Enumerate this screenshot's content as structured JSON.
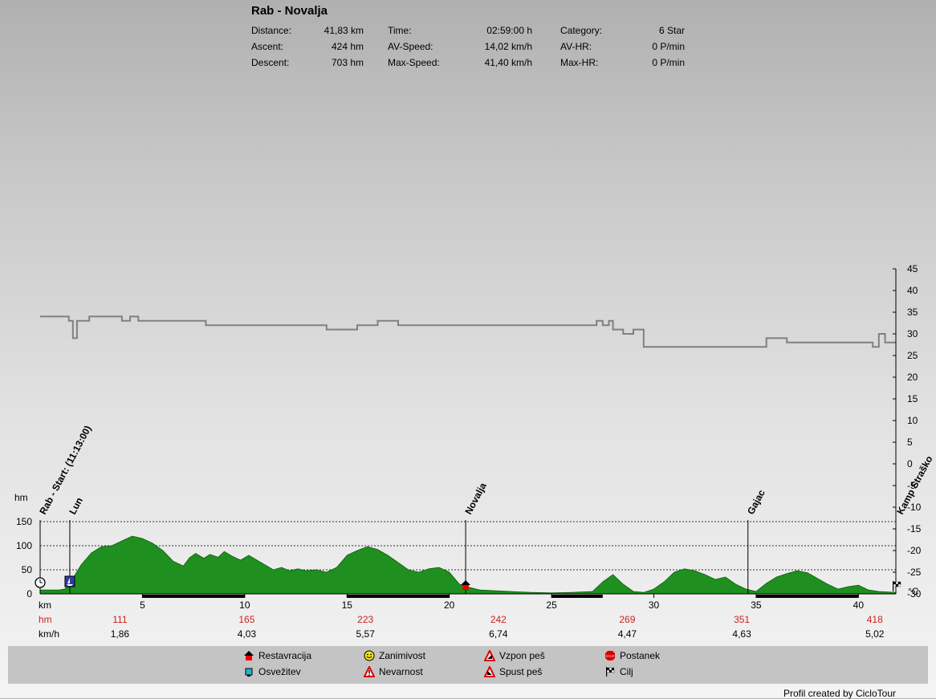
{
  "title": "Rab - Novalja",
  "stats": [
    {
      "label": "Distance:",
      "value": "41,83 km"
    },
    {
      "label": "Ascent:",
      "value": "424 hm"
    },
    {
      "label": "Descent:",
      "value": "703 hm"
    },
    {
      "label": "Time:",
      "value": "02:59:00 h"
    },
    {
      "label": "AV-Speed:",
      "value": "14,02 km/h"
    },
    {
      "label": "Max-Speed:",
      "value": "41,40 km/h"
    },
    {
      "label": "Category:",
      "value": "6 Star"
    },
    {
      "label": "AV-HR:",
      "value": "0 P/min"
    },
    {
      "label": "Max-HR:",
      "value": "0 P/min"
    }
  ],
  "chart_data": {
    "type": "area",
    "x_unit": "km",
    "left_axis": {
      "label": "hm",
      "ticks": [
        0,
        50,
        100,
        150
      ],
      "range": [
        0,
        150
      ]
    },
    "right_axis": {
      "label": "°C",
      "ticks": [
        45,
        40,
        35,
        30,
        25,
        20,
        15,
        10,
        5,
        0,
        -5,
        -10,
        -15,
        -20,
        -25,
        -30
      ],
      "range": [
        -30,
        45
      ]
    },
    "x_ticks": [
      5,
      10,
      15,
      20,
      25,
      30,
      35,
      40
    ],
    "x_range": [
      0,
      41.83
    ],
    "elevation": {
      "x": [
        0,
        0.9,
        1.2,
        1.5,
        2.0,
        2.5,
        3,
        3.5,
        4,
        4.5,
        5,
        5.5,
        6,
        6.5,
        7,
        7.3,
        7.6,
        8,
        8.3,
        8.7,
        9,
        9.4,
        9.8,
        10.2,
        10.6,
        11,
        11.4,
        11.8,
        12.2,
        12.6,
        13,
        13.5,
        14,
        14.5,
        15,
        15.5,
        16,
        16.5,
        17,
        17.5,
        18,
        18.5,
        19,
        19.5,
        20,
        20.5,
        20.8,
        21,
        21.5,
        22,
        22.5,
        23,
        23.5,
        24,
        25,
        26,
        27,
        27.5,
        28,
        28.5,
        29,
        29.5,
        30,
        30.5,
        31,
        31.5,
        32,
        32.5,
        33,
        33.5,
        34,
        34.5,
        35,
        35.5,
        36,
        36.5,
        37,
        37.5,
        38,
        38.5,
        39,
        39.5,
        40,
        40.5,
        41,
        41.83
      ],
      "y": [
        8,
        8,
        10,
        25,
        60,
        85,
        98,
        100,
        110,
        120,
        115,
        105,
        90,
        68,
        58,
        75,
        84,
        74,
        82,
        76,
        88,
        78,
        70,
        80,
        70,
        60,
        50,
        55,
        48,
        52,
        48,
        50,
        45,
        55,
        80,
        90,
        98,
        92,
        80,
        65,
        50,
        45,
        52,
        55,
        45,
        20,
        15,
        13,
        8,
        7,
        6,
        5,
        4,
        3,
        2,
        3,
        5,
        25,
        40,
        20,
        5,
        3,
        10,
        25,
        45,
        52,
        48,
        40,
        30,
        35,
        20,
        10,
        5,
        22,
        35,
        42,
        48,
        44,
        32,
        20,
        10,
        15,
        18,
        8,
        5,
        3
      ],
      "color": "#1f8f1f"
    },
    "temperature": {
      "x": [
        0,
        0.2,
        1.4,
        1.6,
        1.8,
        2.4,
        2.7,
        4,
        4,
        4.4,
        4.8,
        8,
        8.1,
        12,
        14,
        15,
        15.5,
        16.5,
        17.3,
        17.5,
        27,
        27.2,
        27.5,
        27.8,
        28,
        28.2,
        28.5,
        28.8,
        29,
        29.3,
        29.5,
        30,
        34,
        35,
        35.5,
        36,
        36.5,
        40,
        40.5,
        40.7,
        41,
        41.3,
        41.83
      ],
      "y": [
        34,
        34,
        33,
        29,
        33,
        34,
        34,
        33,
        33,
        34,
        33,
        33,
        32,
        32,
        31,
        31,
        32,
        33,
        33,
        32,
        32,
        33,
        32,
        33,
        31,
        31,
        30,
        30,
        31,
        31,
        27,
        27,
        27,
        27,
        29,
        29,
        28,
        28,
        28,
        27,
        30,
        28,
        28
      ],
      "color": "#808080"
    },
    "waypoints": [
      {
        "km": 0.0,
        "label": "Rab - Start: (11:13:00)",
        "icon": "start"
      },
      {
        "km": 1.45,
        "label": "Lun",
        "icon": "ferry"
      },
      {
        "km": 20.8,
        "label": "Novalja",
        "icon": "restavracija"
      },
      {
        "km": 34.6,
        "label": "Gajac",
        "icon": ""
      },
      {
        "km": 41.83,
        "label": "Kamp Straško",
        "icon": "cilj"
      }
    ],
    "surface_segments": [
      [
        5,
        10
      ],
      [
        15,
        20
      ],
      [
        25,
        27.5
      ],
      [
        35,
        40
      ]
    ],
    "summary_rows": [
      {
        "label": "hm",
        "color": "#cc2222",
        "values": [
          "111",
          "165",
          "223",
          "242",
          "269",
          "351",
          "418"
        ]
      },
      {
        "label": "km/h",
        "color": "#000000",
        "values": [
          "1,86",
          "4,03",
          "5,57",
          "6,74",
          "4,47",
          "4,63",
          "5,02"
        ]
      }
    ],
    "summary_x": [
      3.9,
      10.1,
      15.9,
      22.4,
      28.7,
      34.3,
      40.8
    ]
  },
  "legend": [
    {
      "label": "Restavracija",
      "icon": "house-icon"
    },
    {
      "label": "Osvežitev",
      "icon": "cup-icon"
    },
    {
      "label": "Zanimivost",
      "icon": "smiley-icon"
    },
    {
      "label": "Nevarnost",
      "icon": "warning-icon"
    },
    {
      "label": "Vzpon peš",
      "icon": "climb-icon"
    },
    {
      "label": "Spust peš",
      "icon": "descent-icon"
    },
    {
      "label": "Postanek",
      "icon": "stop-icon"
    },
    {
      "label": "Cilj",
      "icon": "finish-flag-icon"
    }
  ],
  "credit": "Profil created by CicloTour"
}
